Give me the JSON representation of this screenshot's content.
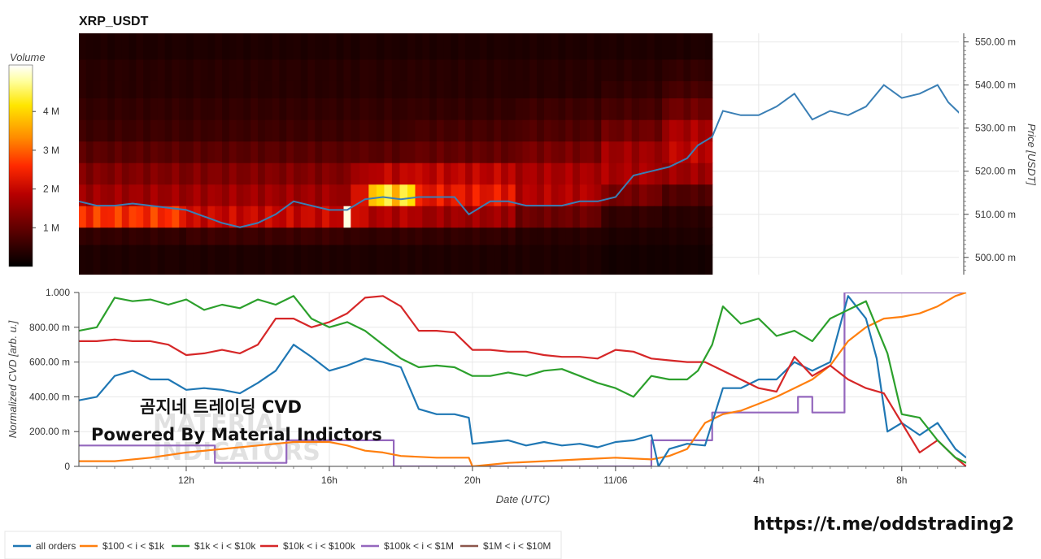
{
  "header": {
    "title": "XRP_USDT",
    "overlay_line1": "곰지네 트레이딩 CVD",
    "overlay_line2": "Powered By Material Indictors",
    "watermark_line1": "MATERIAL",
    "watermark_line2": "INDICATORS",
    "url": "https://t.me/oddstrading2"
  },
  "colors": {
    "all_orders": "#1f77b4",
    "tier_100_1k": "#ff7f0e",
    "tier_1k_10k": "#2ca02c",
    "tier_10k_100k": "#d62728",
    "tier_100k_1m": "#9467bd",
    "tier_1m_10m": "#8c564b"
  },
  "chart_data": [
    {
      "type": "heatmap",
      "title": "XRP_USDT",
      "xlabel": "",
      "ylabel": "Price [USDT]",
      "colorbar": {
        "label": "Volume",
        "range": [
          0,
          5.2
        ],
        "ticks": [
          "1 M",
          "2 M",
          "3 M",
          "4 M"
        ],
        "tick_values": [
          1,
          2,
          3,
          4
        ]
      },
      "xlim": [
        9,
        33.8
      ],
      "heatmap_end_x": 26.7,
      "ylim": [
        496,
        552
      ],
      "y_ticks": [
        "500.00 m",
        "510.00 m",
        "520.00 m",
        "530.00 m",
        "540.00 m",
        "550.00 m"
      ],
      "y_tick_values": [
        500,
        510,
        520,
        530,
        540,
        550
      ],
      "row_bounds": [
        496,
        503,
        507,
        512,
        517,
        522,
        527,
        532,
        537,
        541,
        546,
        552
      ],
      "heat_segments": [
        {
          "x0": 9,
          "x1": 12,
          "values": [
            0.3,
            0.5,
            2.6,
            1.6,
            1.3,
            0.9,
            0.6,
            0.5,
            0.4,
            0.4,
            0.3
          ]
        },
        {
          "x0": 12,
          "x1": 16.4,
          "values": [
            0.3,
            0.6,
            2.0,
            1.6,
            1.3,
            0.9,
            0.6,
            0.5,
            0.4,
            0.4,
            0.3
          ]
        },
        {
          "x0": 16.4,
          "x1": 16.6,
          "values": [
            0.3,
            0.5,
            5.2,
            1.5,
            1.3,
            0.9,
            0.6,
            0.5,
            0.4,
            0.4,
            0.3
          ]
        },
        {
          "x0": 16.6,
          "x1": 17.1,
          "values": [
            0.3,
            0.5,
            2.0,
            2.1,
            1.6,
            0.9,
            0.6,
            0.5,
            0.4,
            0.4,
            0.3
          ]
        },
        {
          "x0": 17.1,
          "x1": 18.4,
          "values": [
            0.3,
            0.5,
            1.8,
            4.1,
            1.9,
            0.9,
            0.6,
            0.5,
            0.4,
            0.4,
            0.3
          ]
        },
        {
          "x0": 18.4,
          "x1": 21.2,
          "values": [
            0.3,
            0.5,
            1.6,
            2.3,
            1.9,
            1.0,
            0.7,
            0.5,
            0.4,
            0.4,
            0.3
          ]
        },
        {
          "x0": 21.2,
          "x1": 23.6,
          "values": [
            0.3,
            0.4,
            1.1,
            1.8,
            1.7,
            1.2,
            0.8,
            0.6,
            0.4,
            0.4,
            0.3
          ]
        },
        {
          "x0": 23.6,
          "x1": 25.3,
          "values": [
            0.2,
            0.3,
            0.5,
            1.2,
            1.7,
            1.6,
            1.1,
            0.7,
            0.5,
            0.4,
            0.3
          ]
        },
        {
          "x0": 25.3,
          "x1": 26.7,
          "values": [
            0.2,
            0.3,
            0.4,
            0.8,
            1.6,
            1.9,
            1.7,
            1.1,
            0.7,
            0.5,
            0.3
          ]
        }
      ],
      "price_series": {
        "name": "Price",
        "x": [
          9,
          9.5,
          10,
          10.5,
          11,
          11.5,
          12,
          12.5,
          13,
          13.5,
          14,
          14.5,
          15,
          15.5,
          16,
          16.5,
          17,
          17.5,
          18,
          18.5,
          19,
          19.5,
          19.9,
          20.5,
          21,
          21.5,
          22,
          22.5,
          23,
          23.5,
          24,
          24.5,
          25,
          25.5,
          26,
          26.3,
          26.7,
          27,
          27.5,
          28,
          28.5,
          29,
          29.5,
          30,
          30.5,
          31,
          31.5,
          32,
          32.5,
          33,
          33.3,
          33.8
        ],
        "y": [
          513,
          512,
          512,
          512.5,
          512,
          511.5,
          511,
          509.5,
          508,
          507,
          508,
          510,
          513,
          512,
          511,
          511,
          513.5,
          514,
          513.5,
          514,
          514,
          514,
          510,
          513,
          513,
          512,
          512,
          512,
          513,
          513,
          514,
          519,
          520,
          521,
          523,
          526,
          528,
          534,
          533,
          533,
          535,
          538,
          532,
          534,
          533,
          535,
          540,
          537,
          538,
          540,
          536,
          532
        ]
      }
    },
    {
      "type": "line",
      "title": "",
      "xlabel": "Date (UTC)",
      "ylabel": "Normalized CVD [arb. u.]",
      "xlim": [
        9,
        33.8
      ],
      "ylim": [
        0,
        1
      ],
      "x_ticks": [
        "12h",
        "16h",
        "20h",
        "11/06",
        "4h",
        "8h"
      ],
      "x_tick_values": [
        12,
        16,
        20,
        24,
        28,
        32
      ],
      "y_ticks": [
        "0",
        "200.00 m",
        "400.00 m",
        "600.00 m",
        "800.00 m",
        "1.000"
      ],
      "y_tick_values": [
        0,
        0.2,
        0.4,
        0.6,
        0.8,
        1.0
      ],
      "legend_position": "bottom-left",
      "series": [
        {
          "name": "all orders",
          "color": "#1f77b4",
          "x": [
            9,
            9.5,
            10,
            10.5,
            11,
            11.5,
            12,
            12.5,
            13,
            13.5,
            14,
            14.5,
            15,
            15.5,
            16,
            16.5,
            17,
            17.5,
            18,
            18.5,
            19,
            19.5,
            19.9,
            20,
            20.5,
            21,
            21.5,
            22,
            22.5,
            23,
            23.5,
            24,
            24.5,
            25,
            25.2,
            25.5,
            26,
            26.5,
            27,
            27.5,
            28,
            28.5,
            29,
            29.5,
            30,
            30.5,
            31,
            31.3,
            31.6,
            32,
            32.5,
            33,
            33.5,
            33.8
          ],
          "y": [
            0.38,
            0.4,
            0.52,
            0.55,
            0.5,
            0.5,
            0.44,
            0.45,
            0.44,
            0.42,
            0.48,
            0.55,
            0.7,
            0.63,
            0.55,
            0.58,
            0.62,
            0.6,
            0.57,
            0.33,
            0.3,
            0.3,
            0.28,
            0.13,
            0.14,
            0.15,
            0.12,
            0.14,
            0.12,
            0.13,
            0.11,
            0.14,
            0.15,
            0.18,
            0.0,
            0.1,
            0.13,
            0.12,
            0.45,
            0.45,
            0.5,
            0.5,
            0.6,
            0.55,
            0.6,
            0.98,
            0.85,
            0.62,
            0.2,
            0.25,
            0.18,
            0.25,
            0.1,
            0.05
          ]
        },
        {
          "name": "$100 < i < $1k",
          "color": "#ff7f0e",
          "x": [
            9,
            10,
            11,
            12,
            13,
            14,
            15,
            16,
            16.5,
            17,
            17.5,
            18,
            19,
            19.9,
            20,
            20.5,
            21,
            22,
            23,
            24,
            25,
            25.5,
            26,
            26.5,
            27,
            27.5,
            28,
            28.5,
            29,
            29.5,
            30,
            30.5,
            31,
            31.5,
            32,
            32.5,
            33,
            33.5,
            33.8
          ],
          "y": [
            0.03,
            0.03,
            0.05,
            0.08,
            0.1,
            0.12,
            0.14,
            0.14,
            0.12,
            0.09,
            0.08,
            0.06,
            0.05,
            0.05,
            0.0,
            0.01,
            0.02,
            0.03,
            0.04,
            0.05,
            0.04,
            0.06,
            0.1,
            0.25,
            0.3,
            0.32,
            0.36,
            0.4,
            0.45,
            0.5,
            0.58,
            0.72,
            0.8,
            0.85,
            0.86,
            0.88,
            0.92,
            0.98,
            1.0
          ]
        },
        {
          "name": "$1k < i < $10k",
          "color": "#2ca02c",
          "x": [
            9,
            9.5,
            10,
            10.5,
            11,
            11.5,
            12,
            12.5,
            13,
            13.5,
            14,
            14.5,
            15,
            15.5,
            16,
            16.5,
            17,
            17.5,
            18,
            18.5,
            19,
            19.5,
            20,
            20.5,
            21,
            21.5,
            22,
            22.5,
            23,
            23.5,
            24,
            24.5,
            25,
            25.5,
            26,
            26.3,
            26.7,
            27,
            27.5,
            28,
            28.5,
            29,
            29.5,
            30,
            30.5,
            31,
            31.3,
            31.6,
            32,
            32.5,
            33,
            33.5,
            33.8
          ],
          "y": [
            0.78,
            0.8,
            0.97,
            0.95,
            0.96,
            0.93,
            0.96,
            0.9,
            0.93,
            0.91,
            0.96,
            0.93,
            0.98,
            0.85,
            0.8,
            0.83,
            0.78,
            0.7,
            0.62,
            0.57,
            0.58,
            0.57,
            0.52,
            0.52,
            0.54,
            0.52,
            0.55,
            0.56,
            0.52,
            0.48,
            0.45,
            0.4,
            0.52,
            0.5,
            0.5,
            0.55,
            0.7,
            0.92,
            0.82,
            0.85,
            0.75,
            0.78,
            0.72,
            0.85,
            0.9,
            0.95,
            0.8,
            0.65,
            0.3,
            0.28,
            0.15,
            0.05,
            0.02
          ]
        },
        {
          "name": "$10k < i < $100k",
          "color": "#d62728",
          "x": [
            9,
            9.5,
            10,
            10.5,
            11,
            11.5,
            12,
            12.5,
            13,
            13.5,
            14,
            14.5,
            15,
            15.5,
            16,
            16.5,
            17,
            17.5,
            18,
            18.5,
            19,
            19.5,
            20,
            20.5,
            21,
            21.5,
            22,
            22.5,
            23,
            23.5,
            24,
            24.5,
            25,
            25.5,
            26,
            26.5,
            27,
            27.5,
            28,
            28.5,
            29,
            29.5,
            30,
            30.5,
            31,
            31.5,
            32,
            32.5,
            33,
            33.5,
            33.8
          ],
          "y": [
            0.72,
            0.72,
            0.73,
            0.72,
            0.72,
            0.7,
            0.64,
            0.65,
            0.67,
            0.65,
            0.7,
            0.85,
            0.85,
            0.8,
            0.83,
            0.88,
            0.97,
            0.98,
            0.92,
            0.78,
            0.78,
            0.77,
            0.67,
            0.67,
            0.66,
            0.66,
            0.64,
            0.63,
            0.63,
            0.62,
            0.67,
            0.66,
            0.62,
            0.61,
            0.6,
            0.6,
            0.55,
            0.5,
            0.45,
            0.43,
            0.63,
            0.52,
            0.58,
            0.5,
            0.45,
            0.42,
            0.25,
            0.08,
            0.15,
            0.05,
            0.0
          ]
        },
        {
          "name": "$100k < i < $1M",
          "color": "#9467bd",
          "x": [
            9,
            12.8,
            12.8,
            14.8,
            14.8,
            17.8,
            17.8,
            25.0,
            25.0,
            26.7,
            26.7,
            29.1,
            29.1,
            29.5,
            29.5,
            30.4,
            30.4,
            30.6,
            30.6,
            33.8
          ],
          "y": [
            0.12,
            0.12,
            0.02,
            0.02,
            0.15,
            0.15,
            0.0,
            0.0,
            0.15,
            0.15,
            0.31,
            0.31,
            0.4,
            0.4,
            0.31,
            0.31,
            1.0,
            1.0,
            1.0,
            1.0
          ]
        },
        {
          "name": "$1M < i < $10M",
          "color": "#8c564b",
          "x": [],
          "y": []
        }
      ]
    }
  ]
}
